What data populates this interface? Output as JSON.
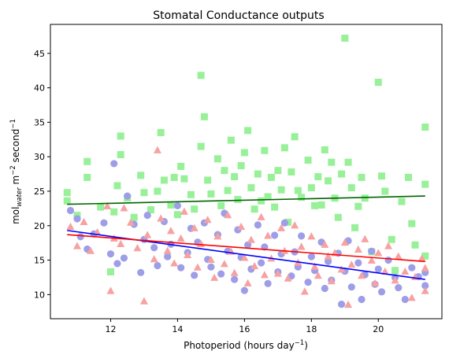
{
  "chart_data": {
    "type": "scatter",
    "title": "Stomatal Conductance outputs",
    "xlabel": {
      "base": "Photoperiod (hours day",
      "sup": "−1",
      "tail": ")"
    },
    "ylabel": {
      "base": "mol",
      "sub": "water",
      "mid": " m",
      "sup1": "−2",
      "mid2": " second",
      "sup2": "−1"
    },
    "xlim": [
      10.2,
      21.9
    ],
    "ylim": [
      6.5,
      49.2
    ],
    "xticks": [
      12,
      14,
      16,
      18,
      20
    ],
    "yticks": [
      10,
      15,
      20,
      25,
      30,
      35,
      40,
      45
    ],
    "grid": false,
    "legend": "none",
    "series": [
      {
        "marker": "square",
        "color": "#98f098",
        "line_color": "#006400",
        "trend": [
          [
            10.7,
            23.1
          ],
          [
            21.4,
            24.3
          ]
        ],
        "points": [
          [
            10.7,
            24.8
          ],
          [
            10.7,
            23.6
          ],
          [
            11.0,
            21.5
          ],
          [
            11.3,
            29.3
          ],
          [
            11.3,
            27.0
          ],
          [
            11.7,
            22.7
          ],
          [
            12.0,
            13.3
          ],
          [
            12.1,
            22.0
          ],
          [
            12.2,
            25.8
          ],
          [
            12.3,
            30.3
          ],
          [
            12.3,
            33.0
          ],
          [
            12.5,
            24.0
          ],
          [
            12.7,
            21.2
          ],
          [
            12.9,
            27.3
          ],
          [
            13.0,
            24.8
          ],
          [
            13.2,
            22.3
          ],
          [
            13.4,
            25.0
          ],
          [
            13.5,
            33.5
          ],
          [
            13.6,
            26.6
          ],
          [
            13.8,
            23.0
          ],
          [
            13.9,
            27.0
          ],
          [
            14.0,
            21.6
          ],
          [
            14.1,
            28.6
          ],
          [
            14.2,
            26.8
          ],
          [
            14.4,
            24.5
          ],
          [
            14.5,
            22.4
          ],
          [
            14.7,
            31.5
          ],
          [
            14.7,
            41.8
          ],
          [
            14.8,
            35.8
          ],
          [
            14.9,
            26.6
          ],
          [
            15.0,
            24.6
          ],
          [
            15.2,
            29.7
          ],
          [
            15.3,
            22.9
          ],
          [
            15.4,
            28.0
          ],
          [
            15.5,
            25.1
          ],
          [
            15.6,
            32.4
          ],
          [
            15.7,
            27.1
          ],
          [
            15.8,
            23.8
          ],
          [
            15.9,
            28.7
          ],
          [
            16.0,
            30.6
          ],
          [
            16.1,
            33.8
          ],
          [
            16.2,
            25.5
          ],
          [
            16.3,
            22.4
          ],
          [
            16.4,
            27.5
          ],
          [
            16.5,
            23.6
          ],
          [
            16.6,
            30.9
          ],
          [
            16.7,
            24.2
          ],
          [
            16.8,
            27.0
          ],
          [
            16.9,
            22.7
          ],
          [
            17.0,
            28.0
          ],
          [
            17.1,
            25.2
          ],
          [
            17.2,
            31.3
          ],
          [
            17.3,
            20.5
          ],
          [
            17.4,
            27.8
          ],
          [
            17.5,
            32.9
          ],
          [
            17.6,
            25.1
          ],
          [
            17.7,
            24.1
          ],
          [
            17.9,
            29.5
          ],
          [
            18.0,
            25.5
          ],
          [
            18.1,
            22.9
          ],
          [
            18.2,
            27.1
          ],
          [
            18.3,
            23.0
          ],
          [
            18.4,
            31.0
          ],
          [
            18.5,
            26.5
          ],
          [
            18.6,
            29.2
          ],
          [
            18.7,
            24.0
          ],
          [
            18.8,
            21.2
          ],
          [
            18.9,
            27.5
          ],
          [
            19.0,
            47.2
          ],
          [
            19.1,
            29.2
          ],
          [
            19.2,
            25.5
          ],
          [
            19.3,
            19.7
          ],
          [
            19.4,
            22.8
          ],
          [
            19.5,
            27.0
          ],
          [
            19.6,
            24.0
          ],
          [
            19.8,
            16.2
          ],
          [
            20.0,
            40.8
          ],
          [
            20.1,
            27.2
          ],
          [
            20.2,
            25.0
          ],
          [
            20.4,
            18.0
          ],
          [
            20.5,
            13.5
          ],
          [
            20.7,
            23.5
          ],
          [
            20.9,
            27.0
          ],
          [
            21.0,
            20.3
          ],
          [
            21.1,
            17.2
          ],
          [
            21.4,
            34.3
          ],
          [
            21.4,
            26.0
          ],
          [
            21.4,
            15.6
          ]
        ]
      },
      {
        "marker": "circle",
        "color": "#9e9ee8",
        "line_color": "#0000ff",
        "trend": [
          [
            10.7,
            19.3
          ],
          [
            21.4,
            12.2
          ]
        ],
        "points": [
          [
            10.8,
            22.2
          ],
          [
            11.0,
            21.0
          ],
          [
            11.1,
            18.4
          ],
          [
            11.3,
            16.6
          ],
          [
            11.5,
            18.8
          ],
          [
            11.8,
            20.4
          ],
          [
            12.0,
            15.9
          ],
          [
            12.1,
            29.0
          ],
          [
            12.2,
            14.5
          ],
          [
            12.4,
            15.3
          ],
          [
            12.5,
            24.3
          ],
          [
            12.7,
            20.2
          ],
          [
            12.9,
            13.2
          ],
          [
            13.0,
            18.0
          ],
          [
            13.1,
            21.5
          ],
          [
            13.3,
            16.8
          ],
          [
            13.4,
            14.2
          ],
          [
            13.6,
            20.6
          ],
          [
            13.7,
            15.5
          ],
          [
            13.8,
            17.3
          ],
          [
            14.0,
            22.9
          ],
          [
            14.1,
            13.9
          ],
          [
            14.3,
            16.1
          ],
          [
            14.4,
            19.6
          ],
          [
            14.5,
            12.8
          ],
          [
            14.6,
            17.6
          ],
          [
            14.8,
            20.4
          ],
          [
            14.9,
            15.1
          ],
          [
            15.0,
            14.0
          ],
          [
            15.2,
            18.7
          ],
          [
            15.3,
            13.0
          ],
          [
            15.4,
            21.8
          ],
          [
            15.5,
            16.3
          ],
          [
            15.7,
            12.2
          ],
          [
            15.8,
            19.4
          ],
          [
            15.9,
            15.4
          ],
          [
            16.0,
            10.6
          ],
          [
            16.1,
            17.2
          ],
          [
            16.2,
            13.7
          ],
          [
            16.4,
            20.1
          ],
          [
            16.5,
            14.6
          ],
          [
            16.6,
            16.9
          ],
          [
            16.7,
            11.6
          ],
          [
            16.9,
            18.6
          ],
          [
            17.0,
            13.3
          ],
          [
            17.1,
            15.9
          ],
          [
            17.2,
            20.4
          ],
          [
            17.4,
            12.7
          ],
          [
            17.5,
            16.2
          ],
          [
            17.6,
            14.0
          ],
          [
            17.7,
            18.5
          ],
          [
            17.9,
            11.8
          ],
          [
            18.0,
            15.5
          ],
          [
            18.1,
            13.5
          ],
          [
            18.3,
            17.6
          ],
          [
            18.4,
            10.9
          ],
          [
            18.5,
            14.8
          ],
          [
            18.6,
            12.1
          ],
          [
            18.8,
            16.0
          ],
          [
            18.9,
            8.6
          ],
          [
            19.0,
            13.4
          ],
          [
            19.1,
            17.8
          ],
          [
            19.2,
            11.1
          ],
          [
            19.4,
            14.6
          ],
          [
            19.5,
            9.3
          ],
          [
            19.6,
            12.9
          ],
          [
            19.8,
            16.3
          ],
          [
            19.9,
            11.5
          ],
          [
            20.0,
            13.7
          ],
          [
            20.1,
            10.4
          ],
          [
            20.3,
            15.0
          ],
          [
            20.5,
            12.5
          ],
          [
            20.6,
            11.0
          ],
          [
            20.8,
            9.3
          ],
          [
            21.0,
            13.9
          ],
          [
            21.2,
            12.6
          ],
          [
            21.4,
            11.3
          ],
          [
            21.4,
            13.2
          ]
        ]
      },
      {
        "marker": "triangle",
        "color": "#f7a1a1",
        "line_color": "#ff0000",
        "trend": [
          [
            10.7,
            18.7
          ],
          [
            21.4,
            14.8
          ]
        ],
        "points": [
          [
            10.8,
            19.8
          ],
          [
            11.0,
            17.0
          ],
          [
            11.2,
            20.5
          ],
          [
            11.4,
            16.3
          ],
          [
            11.6,
            19.0
          ],
          [
            11.9,
            22.8
          ],
          [
            12.0,
            10.5
          ],
          [
            12.1,
            18.1
          ],
          [
            12.3,
            17.3
          ],
          [
            12.4,
            22.5
          ],
          [
            12.6,
            20.4
          ],
          [
            12.8,
            16.7
          ],
          [
            13.0,
            9.0
          ],
          [
            13.1,
            18.6
          ],
          [
            13.3,
            15.1
          ],
          [
            13.4,
            30.9
          ],
          [
            13.5,
            21.0
          ],
          [
            13.7,
            16.3
          ],
          [
            13.8,
            19.2
          ],
          [
            13.9,
            14.5
          ],
          [
            14.1,
            18.1
          ],
          [
            14.2,
            22.0
          ],
          [
            14.3,
            15.7
          ],
          [
            14.5,
            19.6
          ],
          [
            14.6,
            13.9
          ],
          [
            14.7,
            17.3
          ],
          [
            14.9,
            20.8
          ],
          [
            15.0,
            15.0
          ],
          [
            15.1,
            12.4
          ],
          [
            15.2,
            18.4
          ],
          [
            15.4,
            14.4
          ],
          [
            15.5,
            21.5
          ],
          [
            15.6,
            16.2
          ],
          [
            15.7,
            13.1
          ],
          [
            15.9,
            19.8
          ],
          [
            16.0,
            15.3
          ],
          [
            16.1,
            11.6
          ],
          [
            16.2,
            17.9
          ],
          [
            16.3,
            14.1
          ],
          [
            16.5,
            21.2
          ],
          [
            16.6,
            12.8
          ],
          [
            16.7,
            18.5
          ],
          [
            16.8,
            15.2
          ],
          [
            17.0,
            13.0
          ],
          [
            17.1,
            19.6
          ],
          [
            17.2,
            16.3
          ],
          [
            17.3,
            12.3
          ],
          [
            17.5,
            20.0
          ],
          [
            17.6,
            14.6
          ],
          [
            17.7,
            16.9
          ],
          [
            17.8,
            10.4
          ],
          [
            18.0,
            18.4
          ],
          [
            18.1,
            14.0
          ],
          [
            18.2,
            12.7
          ],
          [
            18.4,
            17.2
          ],
          [
            18.5,
            15.5
          ],
          [
            18.6,
            11.9
          ],
          [
            18.7,
            16.0
          ],
          [
            18.9,
            13.6
          ],
          [
            19.0,
            17.5
          ],
          [
            19.1,
            8.5
          ],
          [
            19.2,
            14.3
          ],
          [
            19.4,
            16.5
          ],
          [
            19.5,
            12.7
          ],
          [
            19.6,
            18.0
          ],
          [
            19.8,
            14.9
          ],
          [
            19.9,
            11.6
          ],
          [
            20.0,
            16.0
          ],
          [
            20.2,
            13.3
          ],
          [
            20.3,
            17.0
          ],
          [
            20.5,
            12.0
          ],
          [
            20.6,
            15.5
          ],
          [
            20.8,
            13.3
          ],
          [
            21.0,
            9.5
          ],
          [
            21.1,
            12.5
          ],
          [
            21.3,
            15.2
          ],
          [
            21.4,
            10.5
          ],
          [
            21.4,
            13.8
          ]
        ]
      }
    ]
  }
}
